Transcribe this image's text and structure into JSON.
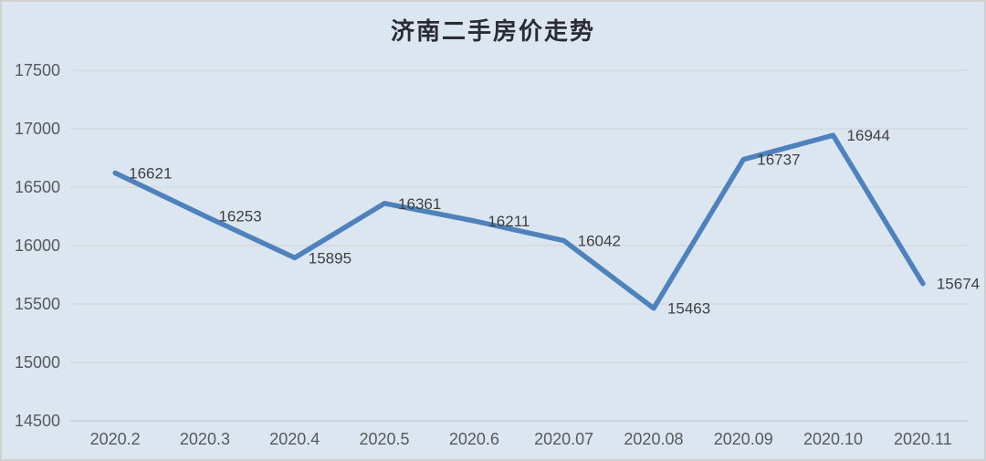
{
  "window": {
    "background_color": "#dce6f1",
    "border_color": "#d0d0d0"
  },
  "chart_data": {
    "type": "line",
    "title": "济南二手房价走势",
    "categories": [
      "2020.2",
      "2020.3",
      "2020.4",
      "2020.5",
      "2020.6",
      "2020.07",
      "2020.08",
      "2020.09",
      "2020.10",
      "2020.11"
    ],
    "series": [
      {
        "name": "济南二手房价",
        "values": [
          16621,
          16253,
          15895,
          16361,
          16211,
          16042,
          15463,
          16737,
          16944,
          15674
        ]
      }
    ],
    "data_labels": [
      16621,
      16253,
      15895,
      16361,
      16211,
      16042,
      15463,
      16737,
      16944,
      15674
    ],
    "data_label_position": "right",
    "xlabel": "",
    "ylabel": "",
    "ylim": [
      14500,
      17500
    ],
    "ytick_step": 500,
    "yticks": [
      14500,
      15000,
      15500,
      16000,
      16500,
      17000,
      17500
    ],
    "grid": true,
    "legend_position": "none",
    "line_color": "#4f81bd",
    "gridline_color": "#d6d6d6",
    "axis_line_color": "#c3cad2",
    "axis_text_color": "#595959",
    "data_label_color": "#404040"
  }
}
